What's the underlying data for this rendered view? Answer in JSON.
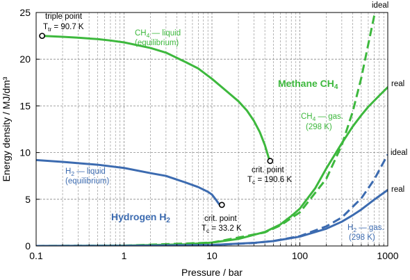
{
  "chart_data": {
    "type": "line",
    "xlabel": "Pressure / bar",
    "ylabel": "Energy density / MJ/dm³",
    "xscale": "log",
    "xlim": [
      0.1,
      1000
    ],
    "ylim": [
      0,
      25
    ],
    "xticks": [
      "0.1",
      "1",
      "10",
      "100",
      "1000"
    ],
    "yticks": [
      "0",
      "5",
      "10",
      "15",
      "20",
      "25"
    ],
    "grid": "dashed vertical minor lines, dashed horizontal lines at major y ticks",
    "colors": {
      "methane": "#3db83d",
      "hydrogen": "#3c6bb0"
    },
    "series": [
      {
        "group": "methane",
        "style": "solid",
        "points": [
          [
            0.117,
            22.5
          ],
          [
            0.15,
            22.45
          ],
          [
            0.2,
            22.4
          ],
          [
            0.3,
            22.3
          ],
          [
            0.5,
            22.15
          ],
          [
            0.7,
            22.0
          ],
          [
            1,
            21.8
          ],
          [
            2,
            21.2
          ],
          [
            3,
            20.7
          ],
          [
            5,
            19.7
          ],
          [
            7,
            19.0
          ],
          [
            10,
            17.9
          ],
          [
            15,
            16.5
          ],
          [
            20,
            15.5
          ],
          [
            25,
            14.5
          ],
          [
            30,
            13.4
          ],
          [
            35,
            12.2
          ],
          [
            40,
            10.8
          ],
          [
            45,
            9.2
          ]
        ]
      },
      {
        "group": "hydrogen",
        "style": "solid",
        "points": [
          [
            0.1,
            9.2
          ],
          [
            0.2,
            9.0
          ],
          [
            0.5,
            8.7
          ],
          [
            1,
            8.35
          ],
          [
            2,
            7.8
          ],
          [
            3,
            7.5
          ],
          [
            5,
            6.8
          ],
          [
            7,
            6.3
          ],
          [
            9,
            5.8
          ],
          [
            10,
            5.5
          ],
          [
            11,
            5.0
          ],
          [
            12,
            4.5
          ],
          [
            12.5,
            4.3
          ]
        ]
      },
      {
        "group": "methane",
        "style": "solid",
        "points": [
          [
            0.1,
            0.004
          ],
          [
            1,
            0.036
          ],
          [
            5,
            0.18
          ],
          [
            10,
            0.36
          ],
          [
            20,
            0.75
          ],
          [
            40,
            1.5
          ],
          [
            60,
            2.3
          ],
          [
            80,
            3.2
          ],
          [
            100,
            4.0
          ],
          [
            150,
            6.2
          ],
          [
            200,
            8.3
          ],
          [
            300,
            11.0
          ],
          [
            400,
            12.8
          ],
          [
            500,
            14.0
          ],
          [
            600,
            14.9
          ],
          [
            800,
            16.1
          ],
          [
            1000,
            17.0
          ]
        ]
      },
      {
        "group": "methane",
        "style": "dashed",
        "points": [
          [
            0.1,
            0.004
          ],
          [
            1,
            0.036
          ],
          [
            10,
            0.36
          ],
          [
            40,
            1.45
          ],
          [
            60,
            2.2
          ],
          [
            100,
            3.6
          ],
          [
            200,
            7.2
          ],
          [
            300,
            10.8
          ],
          [
            400,
            14.4
          ],
          [
            500,
            18.0
          ],
          [
            600,
            21.6
          ],
          [
            700,
            24.6
          ],
          [
            730,
            25
          ]
        ]
      },
      {
        "group": "hydrogen",
        "style": "solid",
        "points": [
          [
            0.1,
            0.001
          ],
          [
            1,
            0.011
          ],
          [
            10,
            0.1
          ],
          [
            30,
            0.33
          ],
          [
            50,
            0.52
          ],
          [
            100,
            1.0
          ],
          [
            200,
            1.85
          ],
          [
            300,
            2.6
          ],
          [
            400,
            3.3
          ],
          [
            500,
            3.9
          ],
          [
            700,
            4.95
          ],
          [
            1000,
            6.0
          ]
        ]
      },
      {
        "group": "hydrogen",
        "style": "dashed",
        "points": [
          [
            0.1,
            0.001
          ],
          [
            1,
            0.011
          ],
          [
            10,
            0.1
          ],
          [
            30,
            0.32
          ],
          [
            50,
            0.53
          ],
          [
            100,
            1.05
          ],
          [
            200,
            2.1
          ],
          [
            300,
            3.05
          ],
          [
            500,
            5.1
          ],
          [
            700,
            7.1
          ],
          [
            1000,
            9.8
          ]
        ]
      }
    ],
    "markers": [
      {
        "group": "methane",
        "x": 0.117,
        "y": 22.5
      },
      {
        "group": "methane",
        "x": 45.99,
        "y": 9.1
      },
      {
        "group": "hydrogen",
        "x": 12.96,
        "y": 4.4
      }
    ]
  },
  "annotations": {
    "triple_point": {
      "line1": "triple point",
      "line2_main": "T",
      "line2_sub": "tr",
      "line2_rest": " = 90.7 K"
    },
    "ch4_liquid": {
      "main": "CH",
      "sub": "4",
      "rest": " — liquid",
      "line2": "(equilibrium)"
    },
    "methane_title": {
      "main": "Methane CH",
      "sub": "4"
    },
    "ch4_gas": {
      "main": "CH",
      "sub": "4",
      "rest": " — gas.",
      "line2": "(298 K)"
    },
    "ch4_crit": {
      "line1": "crit. point",
      "line2_main": "T",
      "line2_sub": "c",
      "line2_rest": " = 190.6 K"
    },
    "h2_liquid": {
      "main": "H",
      "sub": "2",
      "rest": " — liquid",
      "line2": "(equilibrium)"
    },
    "hydrogen_title": {
      "main": "Hydrogen H",
      "sub": "2"
    },
    "h2_crit": {
      "line1": "crit. point",
      "line2_main": "T",
      "line2_sub": "c",
      "line2_rest": " = 33.2 K"
    },
    "h2_gas": {
      "main": "H",
      "sub": "2",
      "rest": " — gas.",
      "line2": "(298 K)"
    },
    "ideal_top": "ideal",
    "real_ch4": "real",
    "ideal_h2": "ideal",
    "real_h2": "real"
  }
}
